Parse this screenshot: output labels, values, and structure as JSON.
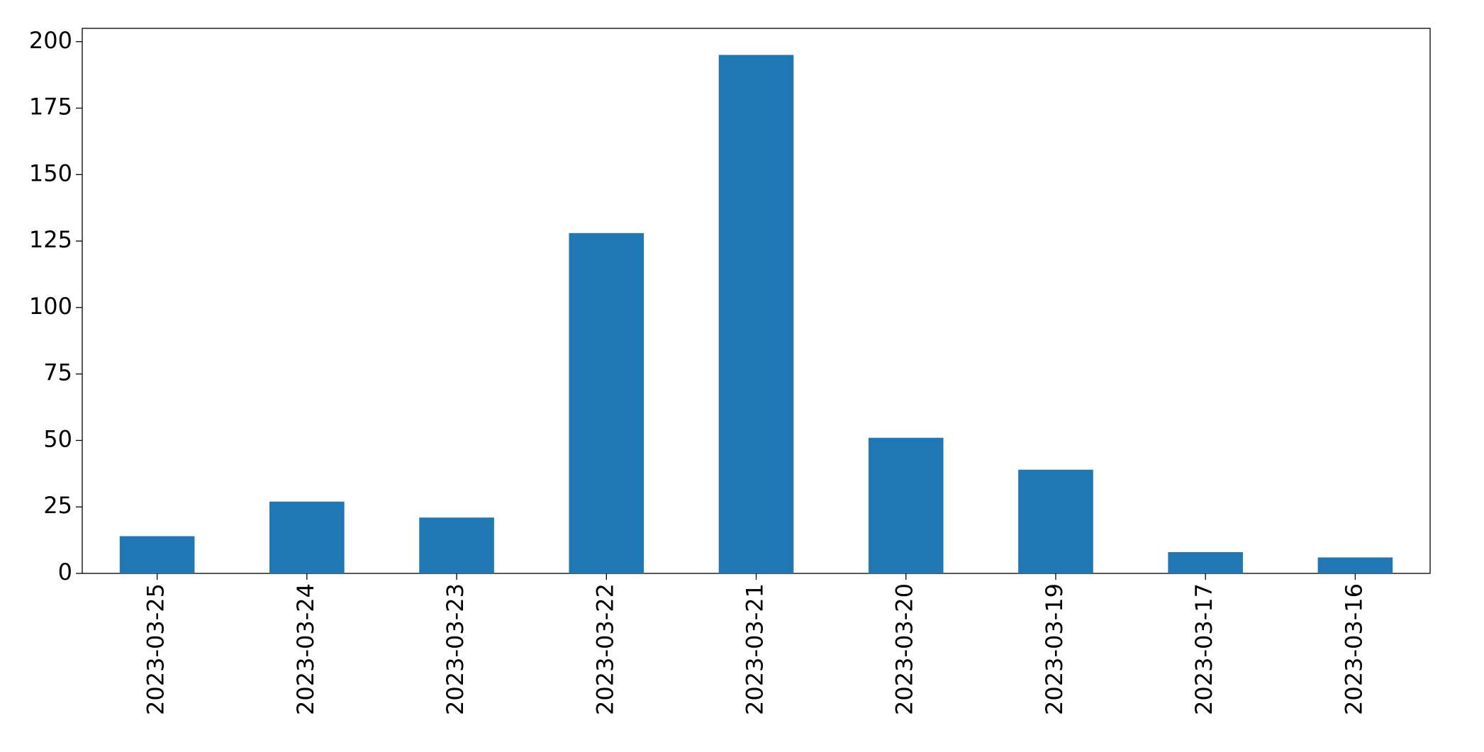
{
  "chart_data": {
    "type": "bar",
    "categories": [
      "2023-03-25",
      "2023-03-24",
      "2023-03-23",
      "2023-03-22",
      "2023-03-21",
      "2023-03-20",
      "2023-03-19",
      "2023-03-17",
      "2023-03-16"
    ],
    "values": [
      14,
      27,
      21,
      128,
      195,
      51,
      39,
      8,
      6
    ],
    "color": "#1f77b4",
    "ylim": [
      0,
      205
    ],
    "yticks": [
      0,
      25,
      50,
      75,
      100,
      125,
      150,
      175,
      200
    ],
    "grid": false
  }
}
